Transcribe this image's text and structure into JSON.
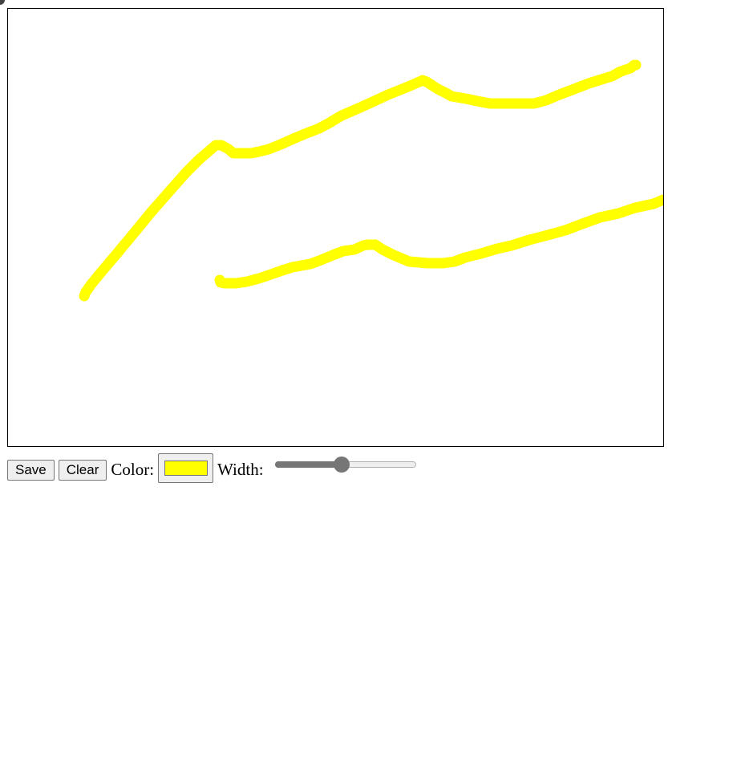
{
  "controls": {
    "save_label": "Save",
    "clear_label": "Clear",
    "color_label": "Color:",
    "width_label": "Width:"
  },
  "color_picker": {
    "value": "#ffff00"
  },
  "width_slider": {
    "value_fraction": 0.47
  },
  "drawing": {
    "stroke_color": "#ffff00",
    "strokes": 2
  }
}
